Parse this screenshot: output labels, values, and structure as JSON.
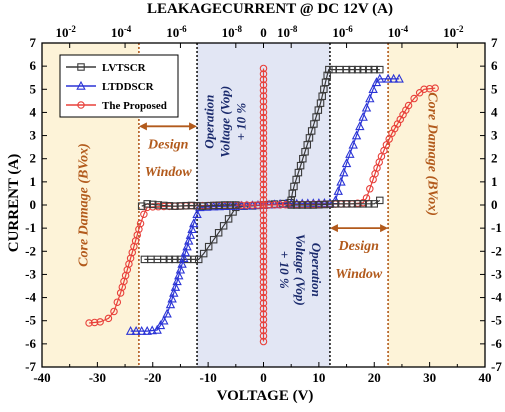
{
  "chart_data": {
    "type": "line",
    "title": "LEAKAGECURRENT @ DC 12V (A)",
    "xlabel": "VOLTAGE (V)",
    "ylabel": "CURRENT (A)",
    "xlim": [
      -40,
      40
    ],
    "ylim": [
      -7,
      7
    ],
    "x_ticks": [
      "-40",
      "-30",
      "-20",
      "-10",
      "0",
      "10",
      "20",
      "30",
      "40"
    ],
    "y_ticks_left": [
      "-7",
      "-6",
      "-5",
      "-4",
      "-3",
      "-2",
      "-1",
      "0",
      "1",
      "2",
      "3",
      "4",
      "5",
      "6",
      "7"
    ],
    "y_ticks_right": [
      "-7",
      "-6",
      "-5",
      "-4",
      "-3",
      "-2",
      "-1",
      "0",
      "1",
      "2",
      "3",
      "4",
      "5",
      "6",
      "7"
    ],
    "top_ticks": [
      {
        "base": "10",
        "exp": "-2",
        "at": -35
      },
      {
        "base": "10",
        "exp": "-4",
        "at": -25
      },
      {
        "base": "10",
        "exp": "-6",
        "at": -15
      },
      {
        "base": "10",
        "exp": "-8",
        "at": -5
      },
      {
        "base": "",
        "exp": "",
        "label": "0",
        "at": 0
      },
      {
        "base": "10",
        "exp": "-8",
        "at": 5
      },
      {
        "base": "10",
        "exp": "-6",
        "at": 15
      },
      {
        "base": "10",
        "exp": "-4",
        "at": 25
      },
      {
        "base": "10",
        "exp": "-2",
        "at": 35
      }
    ],
    "legend": {
      "position": "top-left",
      "entries": [
        "LVTSCR",
        "LTDDSCR",
        "The Proposed"
      ]
    },
    "regions": [
      {
        "name": "core-damage-left",
        "x": [
          -40,
          -22.5
        ],
        "color": "#fdf3d8"
      },
      {
        "name": "design-window-left",
        "x": [
          -22.5,
          -12
        ],
        "color": "#ffffff"
      },
      {
        "name": "operation",
        "x": [
          -12,
          12
        ],
        "color": "#e2e6f4"
      },
      {
        "name": "design-window-right",
        "x": [
          12,
          22.5
        ],
        "color": "#ffffff"
      },
      {
        "name": "core-damage-right",
        "x": [
          22.5,
          40
        ],
        "color": "#fdf3d8"
      }
    ],
    "annotations": {
      "core_left": "Core Damage (BVox)",
      "core_right": "Core Damage (BVox)",
      "design_left_1": "Design",
      "design_left_2": "Window",
      "design_right_1": "Design",
      "design_right_2": "Window",
      "op_left_1": "Operation",
      "op_left_2": "Voltage (Vop)",
      "op_left_3": "+ 10 %",
      "op_right_1": "Operation",
      "op_right_2": "Voltage (Vop)",
      "op_right_3": "+ 10 %"
    },
    "series": [
      {
        "name": "LVTSCR",
        "color": "#3a3a3a",
        "marker": "square",
        "segments": [
          [
            [
              0,
              0
            ],
            [
              1,
              0.02
            ],
            [
              2,
              0.04
            ],
            [
              3.5,
              0.06
            ],
            [
              4.8,
              0.1
            ],
            [
              5,
              0.2
            ],
            [
              5.2,
              0.5
            ],
            [
              5.5,
              0.8
            ],
            [
              5.9,
              1.1
            ],
            [
              6.3,
              1.4
            ],
            [
              6.7,
              1.7
            ],
            [
              7.1,
              2.0
            ],
            [
              7.5,
              2.3
            ],
            [
              7.9,
              2.6
            ],
            [
              8.3,
              2.9
            ],
            [
              8.7,
              3.2
            ],
            [
              9.1,
              3.5
            ],
            [
              9.5,
              3.8
            ],
            [
              9.9,
              4.1
            ],
            [
              10.3,
              4.4
            ],
            [
              10.6,
              4.7
            ],
            [
              10.9,
              5.0
            ],
            [
              11.2,
              5.3
            ],
            [
              11.5,
              5.6
            ],
            [
              11.8,
              5.85
            ],
            [
              12.5,
              5.85
            ],
            [
              15,
              5.85
            ],
            [
              18,
              5.85
            ],
            [
              21,
              5.85
            ]
          ],
          [
            [
              0,
              0
            ],
            [
              -1,
              -0.02
            ],
            [
              -2,
              -0.04
            ],
            [
              -3.5,
              -0.05
            ],
            [
              -5,
              -0.1
            ],
            [
              -5.5,
              -0.3
            ],
            [
              -6.3,
              -0.6
            ],
            [
              -7.2,
              -0.9
            ],
            [
              -8.1,
              -1.2
            ],
            [
              -9,
              -1.5
            ],
            [
              -9.9,
              -1.8
            ],
            [
              -10.8,
              -2.1
            ],
            [
              -11.7,
              -2.35
            ],
            [
              -12.5,
              -2.35
            ],
            [
              -15,
              -2.35
            ],
            [
              -18,
              -2.35
            ],
            [
              -21.5,
              -2.35
            ]
          ]
        ]
      },
      {
        "name": "LTDDSCR",
        "color": "#2b34d6",
        "marker": "triangle",
        "segments": [
          [
            [
              0,
              0
            ],
            [
              3,
              0.03
            ],
            [
              6,
              0.05
            ],
            [
              9,
              0.07
            ],
            [
              12,
              0.08
            ],
            [
              13,
              0.2
            ],
            [
              13.5,
              0.6
            ],
            [
              14,
              1.0
            ],
            [
              14.5,
              1.4
            ],
            [
              15,
              1.8
            ],
            [
              15.6,
              2.2
            ],
            [
              16.2,
              2.6
            ],
            [
              16.8,
              3.0
            ],
            [
              17.4,
              3.4
            ],
            [
              18,
              3.8
            ],
            [
              18.6,
              4.2
            ],
            [
              19.2,
              4.6
            ],
            [
              19.8,
              5.0
            ],
            [
              20.4,
              5.3
            ],
            [
              21,
              5.45
            ],
            [
              22.5,
              5.45
            ],
            [
              24.5,
              5.45
            ]
          ],
          [
            [
              0,
              0
            ],
            [
              -3,
              -0.03
            ],
            [
              -6,
              -0.05
            ],
            [
              -9,
              -0.07
            ],
            [
              -11.5,
              -0.1
            ],
            [
              -12,
              -0.4
            ],
            [
              -12.6,
              -0.8
            ],
            [
              -13.2,
              -1.3
            ],
            [
              -13.8,
              -1.8
            ],
            [
              -14.4,
              -2.3
            ],
            [
              -15,
              -2.8
            ],
            [
              -15.6,
              -3.3
            ],
            [
              -16.2,
              -3.8
            ],
            [
              -16.8,
              -4.3
            ],
            [
              -17.4,
              -4.7
            ],
            [
              -18,
              -5.0
            ],
            [
              -18.6,
              -5.2
            ],
            [
              -19.2,
              -5.4
            ],
            [
              -21,
              -5.45
            ],
            [
              -24,
              -5.45
            ]
          ]
        ]
      },
      {
        "name": "The Proposed",
        "color": "#e8403a",
        "marker": "circle",
        "segments": [
          [
            [
              0,
              0
            ],
            [
              4,
              0.01
            ],
            [
              10,
              0.03
            ],
            [
              16,
              0.05
            ],
            [
              18,
              0.1
            ],
            [
              18.6,
              0.3
            ],
            [
              19.2,
              0.7
            ],
            [
              19.8,
              1.1
            ],
            [
              20.5,
              1.6
            ],
            [
              21.3,
              2.1
            ],
            [
              22.2,
              2.6
            ],
            [
              23.2,
              3.1
            ],
            [
              24.2,
              3.5
            ],
            [
              25.2,
              3.9
            ],
            [
              26.2,
              4.3
            ],
            [
              27.2,
              4.6
            ],
            [
              28.2,
              4.85
            ],
            [
              29,
              5.0
            ],
            [
              31,
              5.05
            ]
          ],
          [
            [
              0,
              0
            ],
            [
              -4,
              -0.01
            ],
            [
              -10,
              -0.02
            ],
            [
              -16,
              -0.05
            ],
            [
              -20,
              -0.08
            ],
            [
              -21,
              -0.1
            ],
            [
              -21.6,
              -0.4
            ],
            [
              -22.2,
              -0.8
            ],
            [
              -22.8,
              -1.3
            ],
            [
              -23.4,
              -1.8
            ],
            [
              -24,
              -2.3
            ],
            [
              -24.6,
              -2.8
            ],
            [
              -25.2,
              -3.3
            ],
            [
              -25.8,
              -3.8
            ],
            [
              -26.4,
              -4.2
            ],
            [
              -27,
              -4.6
            ],
            [
              -28,
              -4.9
            ],
            [
              -29.5,
              -5.05
            ],
            [
              -31.5,
              -5.1
            ]
          ]
        ]
      },
      {
        "name": "",
        "color": "#e8403a",
        "marker": "circle",
        "segments": [
          [
            [
              0,
              -5.9
            ],
            [
              0,
              -4.0
            ],
            [
              0,
              -2.0
            ],
            [
              0,
              0
            ],
            [
              0,
              2.0
            ],
            [
              0,
              4.0
            ],
            [
              0,
              5.9
            ]
          ]
        ]
      },
      {
        "name": "",
        "color": "#3a3a3a",
        "marker": "square",
        "segments": [
          [
            [
              -22,
              -0.05
            ],
            [
              -21,
              0.05
            ],
            [
              -18,
              -0.02
            ],
            [
              -16,
              -0.05
            ],
            [
              -13,
              -0.02
            ],
            [
              -11,
              -0.05
            ],
            [
              -9,
              -0.02
            ],
            [
              -7,
              0
            ],
            [
              -5,
              0
            ]
          ],
          [
            [
              5,
              0
            ],
            [
              7,
              0
            ],
            [
              9,
              0
            ],
            [
              11,
              0.02
            ],
            [
              13,
              0.05
            ],
            [
              15,
              0.05
            ],
            [
              18,
              0.05
            ],
            [
              20,
              0.05
            ],
            [
              21,
              0.2
            ]
          ]
        ]
      }
    ]
  }
}
